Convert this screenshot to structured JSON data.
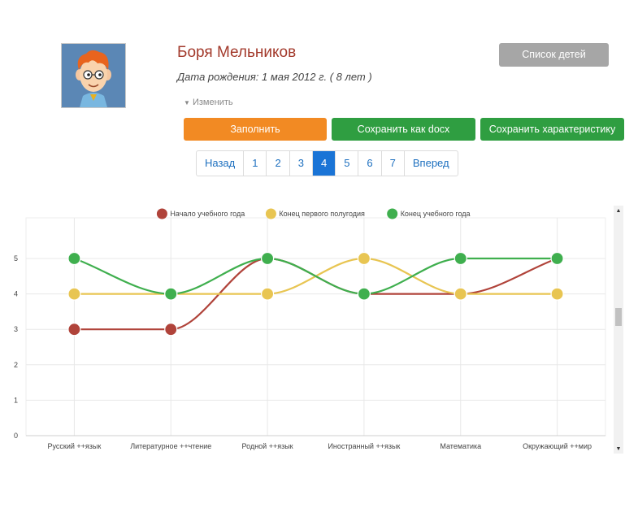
{
  "profile": {
    "name": "Боря Мельников",
    "dob": "Дата рождения: 1 мая 2012 г. ( 8 лет )",
    "edit_label": "Изменить"
  },
  "buttons": {
    "children_list": "Список детей",
    "fill": "Заполнить",
    "save_docx": "Сохранить как docx",
    "save_characteristic": "Сохранить характеристику"
  },
  "pagination": {
    "prev": "Назад",
    "pages": [
      "1",
      "2",
      "3",
      "4",
      "5",
      "6",
      "7"
    ],
    "active": "4",
    "next": "Вперед"
  },
  "chart_data": {
    "type": "line",
    "categories": [
      "Русский ++язык",
      "Литературное ++чтение",
      "Родной ++язык",
      "Иностранный ++язык",
      "Математика",
      "Окружающий ++мир"
    ],
    "series": [
      {
        "name": "Начало учебного года",
        "color": "#b0433a",
        "values": [
          3,
          3,
          5,
          4,
          4,
          5
        ]
      },
      {
        "name": "Конец первого полугодия",
        "color": "#e8c552",
        "values": [
          4,
          4,
          4,
          5,
          4,
          4
        ]
      },
      {
        "name": "Конец учебного года",
        "color": "#3faf4e",
        "values": [
          5,
          4,
          5,
          4,
          5,
          5
        ]
      }
    ],
    "yticks": [
      "0",
      "1",
      "2",
      "3",
      "4",
      "5"
    ],
    "ylim": [
      0,
      5
    ],
    "legend_position": "top",
    "grid": true,
    "smooth": true
  }
}
